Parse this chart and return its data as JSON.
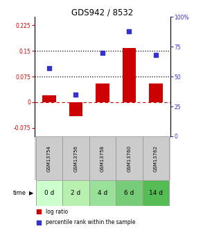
{
  "title": "GDS942 / 8532",
  "samples": [
    "GSM13754",
    "GSM13756",
    "GSM13758",
    "GSM13760",
    "GSM13762"
  ],
  "time_labels": [
    "0 d",
    "2 d",
    "4 d",
    "6 d",
    "14 d"
  ],
  "log_ratio": [
    0.02,
    -0.04,
    0.055,
    0.158,
    0.055
  ],
  "percentile_rank": [
    57,
    35,
    70,
    88,
    68
  ],
  "ylim_left": [
    -0.1,
    0.25
  ],
  "ylim_right": [
    0,
    100
  ],
  "yticks_left": [
    -0.075,
    0,
    0.075,
    0.15,
    0.225
  ],
  "yticks_right": [
    0,
    25,
    50,
    75,
    100
  ],
  "ytick_labels_left": [
    "-0.075",
    "0",
    "0.075",
    "0.15",
    "0.225"
  ],
  "ytick_labels_right": [
    "0",
    "25",
    "50",
    "75",
    "100%"
  ],
  "hlines": [
    0.075,
    0.15
  ],
  "bar_color": "#cc0000",
  "dot_color": "#3333cc",
  "zero_line_color": "#cc0000",
  "hline_color": "#000000",
  "bg_plot": "#ffffff",
  "bg_sample_label": "#cccccc",
  "left_tick_color": "#cc0000",
  "right_tick_color": "#3333cc",
  "bar_width": 0.5,
  "dot_size": 22,
  "time_colors": [
    "#ccffcc",
    "#b8f0b0",
    "#99e099",
    "#77cc77",
    "#55bb55"
  ],
  "legend_bar_color": "#cc0000",
  "legend_dot_color": "#3333cc"
}
